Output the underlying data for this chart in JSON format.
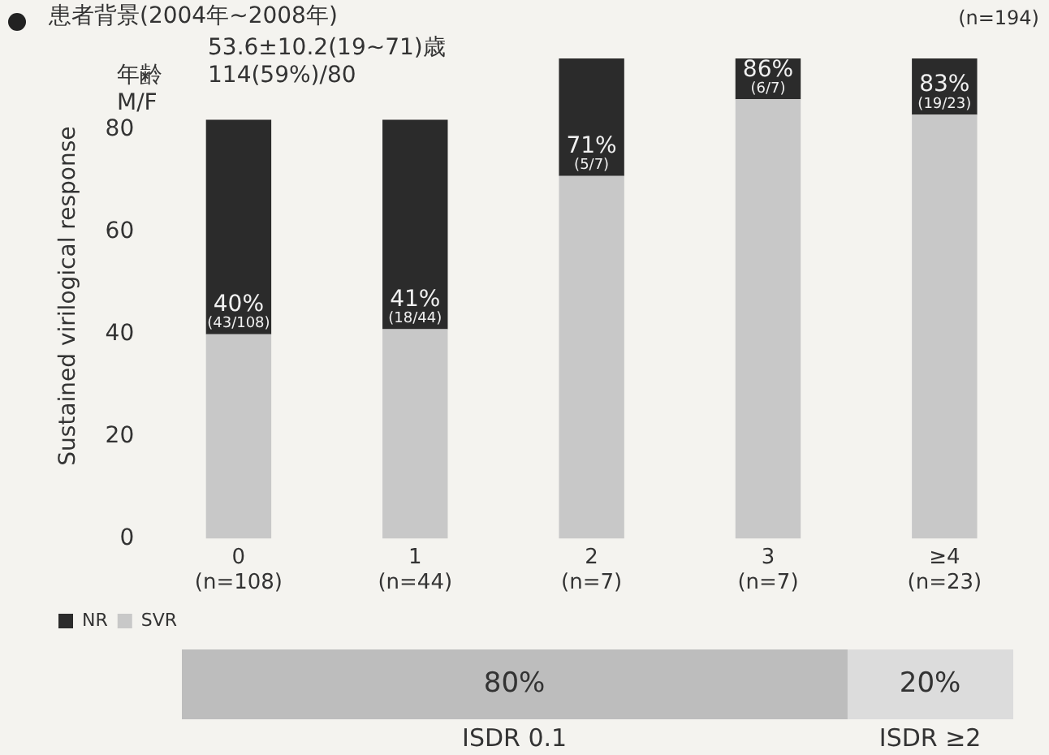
{
  "chart_data": [
    {
      "type": "bar",
      "title": "患者背景(2004年~2008年)",
      "ylabel": "Sustained virilogical response",
      "categories": [
        "0\n(n=108)",
        "1\n(n=44)",
        "2\n(n=7)",
        "3\n(n=7)",
        "≥4\n(n=23)"
      ],
      "stacked": true,
      "series": [
        {
          "name": "SVR",
          "color": "#c8c8c8",
          "values": [
            40,
            41,
            71,
            86,
            83
          ],
          "value_labels": [
            "40%\n(43/108)",
            "41%\n(18/44)",
            "71%\n(5/7)",
            "86%\n(6/7)",
            "83%\n(19/23)"
          ]
        },
        {
          "name": "NR",
          "color": "#2b2b2b",
          "values": [
            42,
            41,
            23,
            8,
            11
          ]
        }
      ],
      "ylim": [
        0,
        95
      ],
      "yticks": [
        0,
        20,
        40,
        60,
        80
      ],
      "grid": false,
      "legend": "bottom left",
      "annotations": [
        "(n=194)",
        "53.6±10.2(19~71)歳",
        "114(59%)/80",
        "年齢",
        "M/F"
      ]
    },
    {
      "type": "bar",
      "orientation": "horizontal",
      "stacked": true,
      "categories": [
        null
      ],
      "series": [
        {
          "name": "ISDR 0.1",
          "color": "#bdbdbd",
          "values": [
            80
          ],
          "value_labels": [
            "80%"
          ]
        },
        {
          "name": "ISDR ≥2",
          "color": "#dcdcdc",
          "values": [
            20
          ],
          "value_labels": [
            "20%"
          ]
        }
      ],
      "xlim": [
        0,
        100
      ],
      "tick_labels": false
    }
  ]
}
